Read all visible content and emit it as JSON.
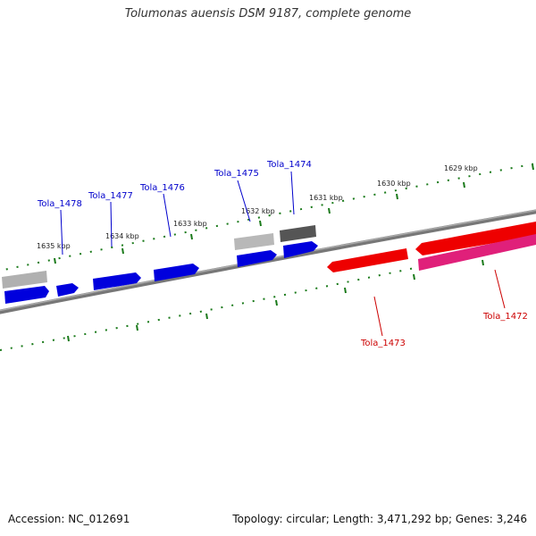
{
  "title": "Tolumonas auensis DSM 9187, complete genome",
  "footer": {
    "accession": "Accession: NC_012691",
    "summary": "Topology: circular; Length: 3,471,292 bp; Genes: 3,246"
  },
  "colors": {
    "backbone": "#777777",
    "tick": "#1a7a1a",
    "forward_gene": "#0000dd",
    "reverse_gene": "#ee0000",
    "reverse_gene_alt": "#e0207a",
    "forward_label": "#0000cc",
    "reverse_label": "#cc0000",
    "other_feature_light": "#b0b0b0",
    "other_feature_dark": "#555555"
  },
  "scale": {
    "ticks": [
      "1629 kbp",
      "1630 kbp",
      "1631 kbp",
      "1632 kbp",
      "1633 kbp",
      "1634 kbp",
      "1635 kbp"
    ]
  },
  "gene_labels": [
    {
      "name": "Tola_1472",
      "strand": "reverse"
    },
    {
      "name": "Tola_1473",
      "strand": "reverse"
    },
    {
      "name": "Tola_1474",
      "strand": "forward"
    },
    {
      "name": "Tola_1475",
      "strand": "forward"
    },
    {
      "name": "Tola_1476",
      "strand": "forward"
    },
    {
      "name": "Tola_1477",
      "strand": "forward"
    },
    {
      "name": "Tola_1478",
      "strand": "forward"
    }
  ]
}
